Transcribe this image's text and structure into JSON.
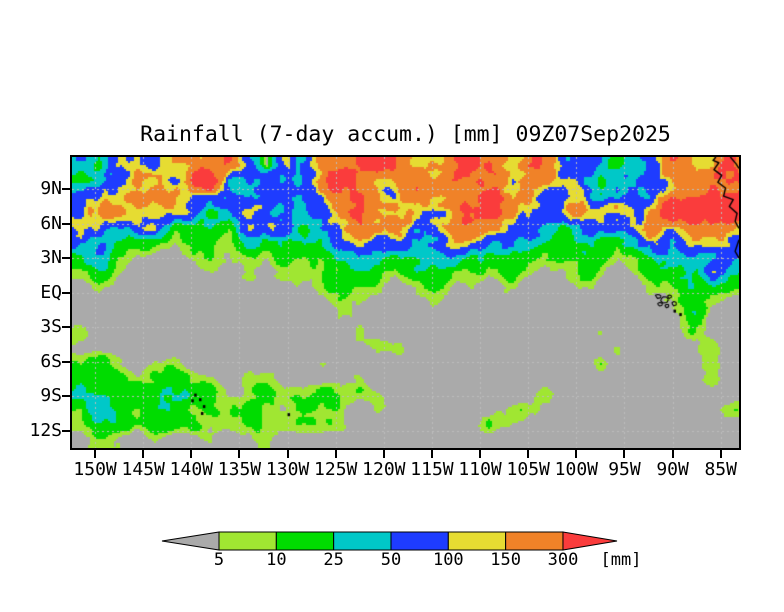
{
  "title": {
    "text": "Rainfall (7-day accum.) [mm] 09Z07Sep2025"
  },
  "axes": {
    "lat_ticks": [
      {
        "label": "9N",
        "value": 9
      },
      {
        "label": "6N",
        "value": 6
      },
      {
        "label": "3N",
        "value": 3
      },
      {
        "label": "EQ",
        "value": 0
      },
      {
        "label": "3S",
        "value": -3
      },
      {
        "label": "6S",
        "value": -6
      },
      {
        "label": "9S",
        "value": -9
      },
      {
        "label": "12S",
        "value": -12
      }
    ],
    "lon_ticks": [
      {
        "label": "150W",
        "value": -150
      },
      {
        "label": "145W",
        "value": -145
      },
      {
        "label": "140W",
        "value": -140
      },
      {
        "label": "135W",
        "value": -135
      },
      {
        "label": "130W",
        "value": -130
      },
      {
        "label": "125W",
        "value": -125
      },
      {
        "label": "120W",
        "value": -120
      },
      {
        "label": "115W",
        "value": -115
      },
      {
        "label": "110W",
        "value": -110
      },
      {
        "label": "105W",
        "value": -105
      },
      {
        "label": "100W",
        "value": -100
      },
      {
        "label": "95W",
        "value": -95
      },
      {
        "label": "90W",
        "value": -90
      },
      {
        "label": "85W",
        "value": -85
      }
    ]
  },
  "colorbar": {
    "levels": [
      "5",
      "10",
      "25",
      "50",
      "100",
      "150",
      "300"
    ],
    "segment_colors": [
      "#a0e632",
      "#00dc00",
      "#00c8c8",
      "#1e3cff",
      "#e6dc32",
      "#f08228"
    ],
    "below_color": "#aaaaaa",
    "above_color": "#fa3c3c",
    "unit_label": "[mm]"
  },
  "chart_data": {
    "type": "heatmap",
    "title": "Rainfall (7-day accum.) [mm] 09Z07Sep2025",
    "variable": "7-day accumulated rainfall",
    "units": "mm",
    "datetime_stamp": "09Z07Sep2025",
    "lon_range": [
      -152.4,
      -83.1
    ],
    "lat_range": [
      -13.5,
      11.8
    ],
    "levels_mm": [
      5,
      10,
      25,
      50,
      100,
      150,
      300
    ],
    "palette": {
      "0-5": "#aaaaaa",
      "5-10": "#a0e632",
      "10-25": "#00dc00",
      "25-50": "#00c8c8",
      "50-100": "#1e3cff",
      "100-150": "#e6dc32",
      "150-300": "#f08228",
      ">300": "#fa3c3c"
    },
    "background_color": "#aaaaaa",
    "gridlines": {
      "lat_step": 3,
      "lon_step": 5,
      "style": "dashed",
      "color": "#bdbdbd"
    },
    "grid_order": "rows north-to-south (11.8N to 13.5S), columns west-to-east (152.4W to 83.1W)",
    "grid_mm": [
      [
        35,
        15,
        75,
        75,
        75,
        210,
        210,
        210,
        210,
        75,
        1,
        75,
        75,
        210,
        210,
        210,
        400,
        210,
        120,
        210,
        210,
        400,
        400,
        210,
        210,
        210,
        75,
        75,
        35,
        15,
        35,
        75,
        210,
        210,
        120,
        210
      ],
      [
        15,
        35,
        75,
        210,
        210,
        120,
        210,
        400,
        75,
        75,
        75,
        35,
        75,
        210,
        400,
        210,
        210,
        210,
        210,
        210,
        400,
        400,
        210,
        210,
        210,
        120,
        75,
        75,
        35,
        35,
        75,
        120,
        210,
        400,
        400,
        400
      ],
      [
        75,
        75,
        120,
        210,
        210,
        210,
        75,
        75,
        75,
        35,
        75,
        75,
        75,
        120,
        210,
        210,
        210,
        120,
        210,
        210,
        210,
        210,
        400,
        210,
        210,
        75,
        75,
        120,
        35,
        35,
        75,
        75,
        210,
        210,
        400,
        400
      ],
      [
        120,
        210,
        210,
        120,
        75,
        75,
        75,
        15,
        35,
        75,
        75,
        75,
        75,
        75,
        210,
        210,
        120,
        210,
        210,
        120,
        210,
        400,
        400,
        210,
        120,
        75,
        75,
        210,
        120,
        75,
        75,
        210,
        400,
        400,
        400,
        400
      ],
      [
        210,
        120,
        75,
        75,
        75,
        15,
        15,
        35,
        15,
        75,
        75,
        75,
        35,
        75,
        120,
        210,
        210,
        210,
        75,
        120,
        210,
        210,
        210,
        120,
        75,
        35,
        15,
        75,
        75,
        35,
        75,
        210,
        210,
        210,
        210,
        120
      ],
      [
        75,
        75,
        35,
        15,
        15,
        7,
        15,
        15,
        15,
        35,
        15,
        15,
        35,
        35,
        75,
        120,
        75,
        75,
        35,
        75,
        120,
        120,
        75,
        75,
        35,
        15,
        15,
        35,
        15,
        15,
        35,
        75,
        75,
        120,
        75,
        75
      ],
      [
        15,
        35,
        15,
        7,
        1,
        1,
        7,
        15,
        7,
        15,
        7,
        15,
        15,
        15,
        35,
        75,
        35,
        15,
        15,
        35,
        75,
        35,
        15,
        15,
        15,
        7,
        15,
        15,
        15,
        7,
        15,
        35,
        35,
        75,
        35,
        35
      ],
      [
        7,
        15,
        7,
        1,
        1,
        1,
        1,
        7,
        1,
        7,
        1,
        7,
        7,
        15,
        15,
        35,
        15,
        7,
        15,
        15,
        15,
        15,
        7,
        15,
        7,
        1,
        7,
        15,
        7,
        1,
        7,
        15,
        15,
        35,
        75,
        15
      ],
      [
        1,
        7,
        1,
        1,
        1,
        1,
        1,
        1,
        1,
        1,
        1,
        1,
        7,
        7,
        15,
        15,
        7,
        1,
        7,
        15,
        7,
        7,
        1,
        7,
        1,
        1,
        1,
        7,
        1,
        1,
        1,
        7,
        15,
        35,
        15,
        7
      ],
      [
        1,
        1,
        1,
        1,
        1,
        1,
        1,
        1,
        1,
        1,
        1,
        1,
        1,
        1,
        7,
        7,
        1,
        1,
        1,
        7,
        1,
        1,
        1,
        1,
        1,
        1,
        1,
        1,
        1,
        1,
        1,
        1,
        7,
        15,
        7,
        1
      ],
      [
        1,
        1,
        1,
        1,
        1,
        1,
        1,
        1,
        1,
        1,
        1,
        1,
        1,
        1,
        7,
        1,
        1,
        1,
        1,
        1,
        1,
        1,
        1,
        1,
        1,
        1,
        1,
        1,
        1,
        1,
        1,
        1,
        1,
        15,
        1,
        1
      ],
      [
        7,
        1,
        1,
        1,
        1,
        1,
        1,
        1,
        1,
        1,
        1,
        1,
        1,
        1,
        1,
        7,
        1,
        1,
        1,
        1,
        1,
        1,
        1,
        1,
        1,
        1,
        1,
        1,
        7,
        1,
        1,
        1,
        1,
        7,
        1,
        1
      ],
      [
        1,
        1,
        1,
        1,
        1,
        1,
        1,
        1,
        1,
        1,
        1,
        1,
        1,
        1,
        7,
        1,
        7,
        7,
        1,
        1,
        1,
        1,
        1,
        1,
        1,
        1,
        1,
        1,
        1,
        7,
        1,
        1,
        1,
        1,
        7,
        1
      ],
      [
        7,
        15,
        7,
        1,
        7,
        7,
        1,
        1,
        1,
        1,
        1,
        1,
        1,
        7,
        1,
        1,
        1,
        1,
        1,
        1,
        1,
        1,
        1,
        1,
        1,
        1,
        1,
        1,
        7,
        1,
        1,
        1,
        1,
        1,
        7,
        1
      ],
      [
        15,
        15,
        15,
        7,
        15,
        15,
        7,
        7,
        1,
        7,
        7,
        1,
        1,
        1,
        1,
        7,
        1,
        1,
        1,
        1,
        1,
        1,
        1,
        1,
        1,
        1,
        1,
        1,
        1,
        1,
        1,
        1,
        1,
        1,
        7,
        1
      ],
      [
        35,
        15,
        7,
        15,
        15,
        15,
        15,
        15,
        7,
        7,
        15,
        7,
        7,
        15,
        7,
        7,
        7,
        1,
        1,
        1,
        1,
        1,
        1,
        1,
        1,
        7,
        1,
        1,
        1,
        1,
        1,
        1,
        1,
        1,
        1,
        1
      ],
      [
        15,
        35,
        15,
        7,
        15,
        15,
        7,
        15,
        15,
        15,
        7,
        7,
        15,
        7,
        7,
        1,
        7,
        1,
        1,
        1,
        1,
        1,
        1,
        7,
        15,
        7,
        1,
        1,
        1,
        1,
        1,
        1,
        1,
        1,
        1,
        7
      ],
      [
        7,
        15,
        15,
        7,
        15,
        15,
        15,
        7,
        15,
        7,
        7,
        15,
        7,
        7,
        7,
        1,
        1,
        1,
        1,
        1,
        1,
        1,
        7,
        7,
        1,
        1,
        1,
        1,
        1,
        1,
        1,
        1,
        1,
        1,
        1,
        1
      ],
      [
        1,
        7,
        7,
        1,
        7,
        1,
        1,
        7,
        1,
        1,
        7,
        1,
        1,
        1,
        1,
        1,
        1,
        1,
        1,
        1,
        1,
        1,
        1,
        1,
        1,
        1,
        1,
        1,
        1,
        1,
        1,
        1,
        1,
        1,
        1,
        1
      ]
    ],
    "features": {
      "coastlines": [
        [
          [
            -85.5,
            11.8
          ],
          [
            -85.8,
            11.5
          ],
          [
            -85.2,
            11.3
          ],
          [
            -85.7,
            10.7
          ],
          [
            -84.9,
            10.2
          ],
          [
            -85.3,
            9.6
          ],
          [
            -84.5,
            9.1
          ],
          [
            -84.7,
            8.4
          ],
          [
            -83.7,
            8.1
          ],
          [
            -84.1,
            7.5
          ],
          [
            -83.3,
            6.9
          ],
          [
            -83.5,
            6.2
          ],
          [
            -83.1,
            5.6
          ]
        ],
        [
          [
            -83.1,
            4.6
          ],
          [
            -83.5,
            3.6
          ],
          [
            -83.1,
            3.0
          ]
        ],
        [
          [
            -84.0,
            11.8
          ],
          [
            -83.4,
            11.2
          ],
          [
            -83.1,
            10.8
          ]
        ]
      ],
      "island_outlines": [
        {
          "lon": -91.5,
          "lat": -0.3,
          "r": 2.0
        },
        {
          "lon": -90.9,
          "lat": -0.6,
          "r": 3.0
        },
        {
          "lon": -90.3,
          "lat": -0.35,
          "r": 1.5
        },
        {
          "lon": -89.8,
          "lat": -0.95,
          "r": 1.8
        },
        {
          "lon": -90.6,
          "lat": -1.15,
          "r": 1.5
        },
        {
          "lon": -91.3,
          "lat": -1.0,
          "r": 1.6
        }
      ],
      "island_dots": [
        [
          -139.6,
          -8.9
        ],
        [
          -139.1,
          -9.3
        ],
        [
          -138.7,
          -9.9
        ],
        [
          -138.9,
          -10.5
        ],
        [
          -139.9,
          -9.4
        ],
        [
          -89.8,
          -1.6
        ],
        [
          -89.2,
          -1.9
        ],
        [
          -129.9,
          -10.6
        ]
      ]
    }
  }
}
